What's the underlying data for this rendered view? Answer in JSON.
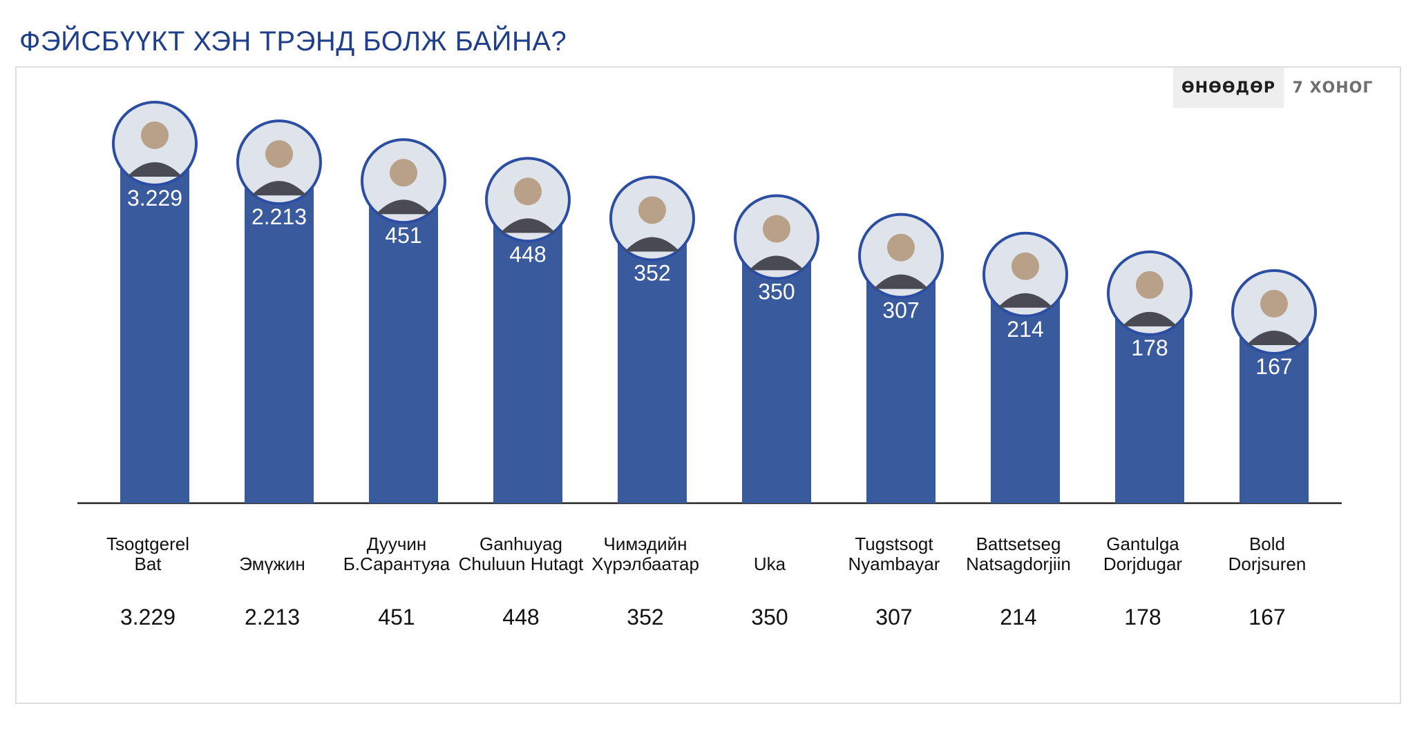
{
  "page_title": "ФЭЙСБҮҮКТ ХЭН ТРЭНД БОЛЖ БАЙНА?",
  "tabs": [
    {
      "label": "ӨНӨӨДӨР",
      "active": true
    },
    {
      "label": "7 ХОНОГ",
      "active": false
    }
  ],
  "colors": {
    "bar": "#3a5a9e",
    "title": "#1f3f8a",
    "avatar_border": "#2b4ea2"
  },
  "chart_data": {
    "type": "bar",
    "categories": [
      [
        "Tsogtgerel",
        "Bat"
      ],
      [
        "Эмүжин"
      ],
      [
        "Дуучин",
        "Б.Сарантуяа"
      ],
      [
        "Ganhuyag",
        "Chuluun Hutagt"
      ],
      [
        "Чимэдийн",
        "Хүрэлбаатар"
      ],
      [
        "Uka"
      ],
      [
        "Tugstsogt",
        "Nyambayar"
      ],
      [
        "Battsetseg",
        "Natsagdorjiin"
      ],
      [
        "Gantulga",
        "Dorjdugar"
      ],
      [
        "Bold",
        "Dorjsuren"
      ]
    ],
    "values": [
      3229,
      2213,
      451,
      448,
      352,
      350,
      307,
      214,
      178,
      167
    ],
    "value_labels": [
      "3.229",
      "2.213",
      "451",
      "448",
      "352",
      "350",
      "307",
      "214",
      "178",
      "167"
    ],
    "avatar_icons": [
      "person-in-suit-icon",
      "person-woman-icon",
      "person-woman-icon",
      "person-mosaic-icon",
      "person-in-suit-icon",
      "person-woman-icon",
      "boxing-ring-icon",
      "person-woman-icon",
      "person-in-suit-icon",
      "person-sunglasses-icon"
    ],
    "rank_ordered": true,
    "grid": false,
    "legend": "none"
  }
}
